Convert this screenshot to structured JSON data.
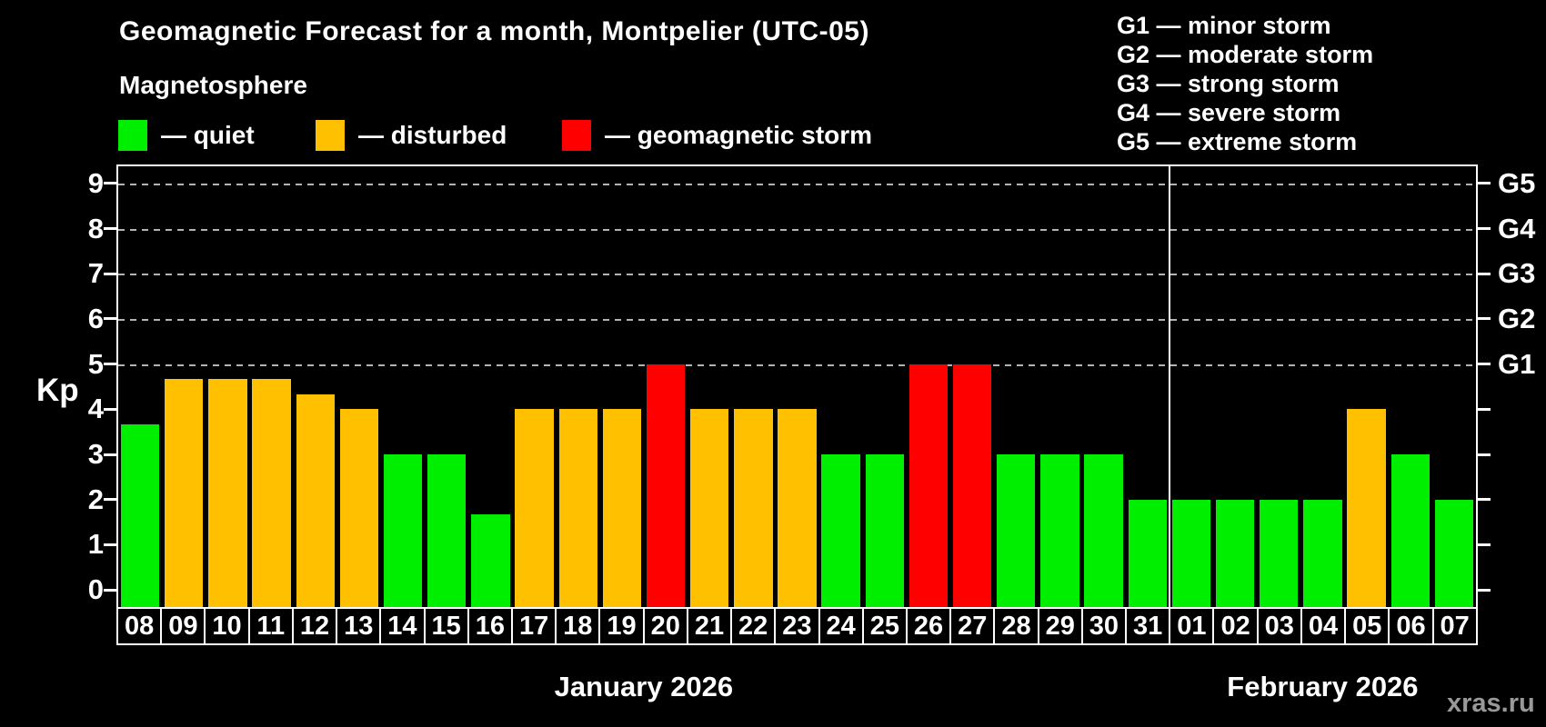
{
  "title": "Geomagnetic Forecast for a month, Montpelier (UTC-05)",
  "subtitle": "Magnetosphere",
  "legend": {
    "items": [
      {
        "status": "quiet",
        "label": "— quiet",
        "color": "#00ee00"
      },
      {
        "status": "disturbed",
        "label": "— disturbed",
        "color": "#ffc000"
      },
      {
        "status": "storm",
        "label": "— geomagnetic storm",
        "color": "#ff0000"
      }
    ]
  },
  "g_legend": [
    "G1 — minor storm",
    "G2 — moderate storm",
    "G3 — strong storm",
    "G4 — severe storm",
    "G5 — extreme storm"
  ],
  "y_axis": {
    "label": "Kp",
    "ticks": [
      0,
      1,
      2,
      3,
      4,
      5,
      6,
      7,
      8,
      9
    ]
  },
  "right_axis": [
    {
      "label": "G1",
      "kp": 5
    },
    {
      "label": "G2",
      "kp": 6
    },
    {
      "label": "G3",
      "kp": 7
    },
    {
      "label": "G4",
      "kp": 8
    },
    {
      "label": "G5",
      "kp": 9
    }
  ],
  "watermark": "xras.ru",
  "chart_data": {
    "type": "bar",
    "title": "Geomagnetic Forecast for a month, Montpelier (UTC-05)",
    "ylabel": "Kp",
    "ylim": [
      0,
      9
    ],
    "gridlines_at": [
      5,
      6,
      7,
      8,
      9
    ],
    "legend_position": "top-left",
    "categories": [
      "08",
      "09",
      "10",
      "11",
      "12",
      "13",
      "14",
      "15",
      "16",
      "17",
      "18",
      "19",
      "20",
      "21",
      "22",
      "23",
      "24",
      "25",
      "26",
      "27",
      "28",
      "29",
      "30",
      "31",
      "01",
      "02",
      "03",
      "04",
      "05",
      "06",
      "07"
    ],
    "values": [
      3.67,
      4.67,
      4.67,
      4.67,
      4.33,
      4.0,
      3.0,
      3.0,
      1.67,
      4.0,
      4.0,
      4.0,
      5.0,
      4.0,
      4.0,
      4.0,
      3.0,
      3.0,
      5.0,
      5.0,
      3.0,
      3.0,
      3.0,
      2.0,
      2.0,
      2.0,
      2.0,
      2.0,
      4.0,
      3.0,
      2.0
    ],
    "statuses": [
      "quiet",
      "disturbed",
      "disturbed",
      "disturbed",
      "disturbed",
      "disturbed",
      "quiet",
      "quiet",
      "quiet",
      "disturbed",
      "disturbed",
      "disturbed",
      "storm",
      "disturbed",
      "disturbed",
      "disturbed",
      "quiet",
      "quiet",
      "storm",
      "storm",
      "quiet",
      "quiet",
      "quiet",
      "quiet",
      "quiet",
      "quiet",
      "quiet",
      "quiet",
      "disturbed",
      "quiet",
      "quiet"
    ],
    "months": [
      {
        "label": "January 2026",
        "days": 24
      },
      {
        "label": "February 2026",
        "days": 7
      }
    ]
  }
}
